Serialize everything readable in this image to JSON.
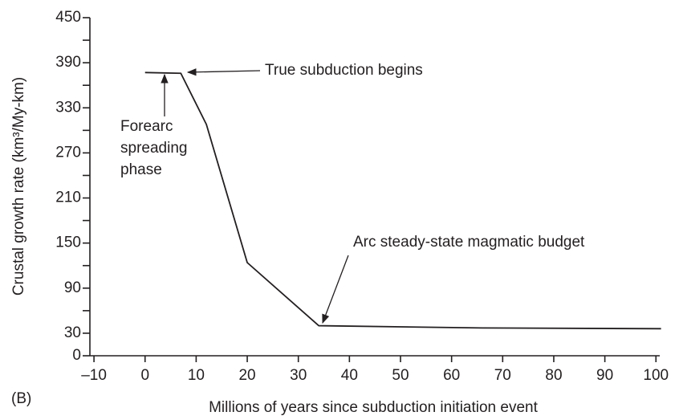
{
  "chart_data": {
    "type": "line",
    "label": "(B)",
    "xlabel": "Millions of years since subduction initiation event",
    "ylabel": "Crustal growth rate (km³/My-km)",
    "x": [
      0,
      7,
      12,
      20,
      34,
      66,
      101
    ],
    "series": [
      {
        "color": "#231f20",
        "values": [
          377,
          376,
          308,
          124,
          40,
          37,
          36
        ]
      }
    ],
    "xlim": [
      -10.8,
      102
    ],
    "xticks": [
      {
        "value": -10,
        "label": "–10"
      },
      0,
      10,
      20,
      30,
      40,
      50,
      60,
      70,
      80,
      90,
      100
    ],
    "ylim": [
      0,
      450
    ],
    "yticks": [
      0,
      30,
      90,
      150,
      210,
      270,
      330,
      390,
      450
    ],
    "yminorticks": [
      60,
      120,
      180,
      240,
      300,
      360,
      420
    ],
    "grid": false,
    "annotations": [
      {
        "text": [
          "True subduction begins"
        ]
      },
      {
        "text": [
          "Forearc",
          "spreading",
          "phase"
        ]
      },
      {
        "text": [
          "Arc steady-state magmatic budget"
        ]
      }
    ]
  }
}
